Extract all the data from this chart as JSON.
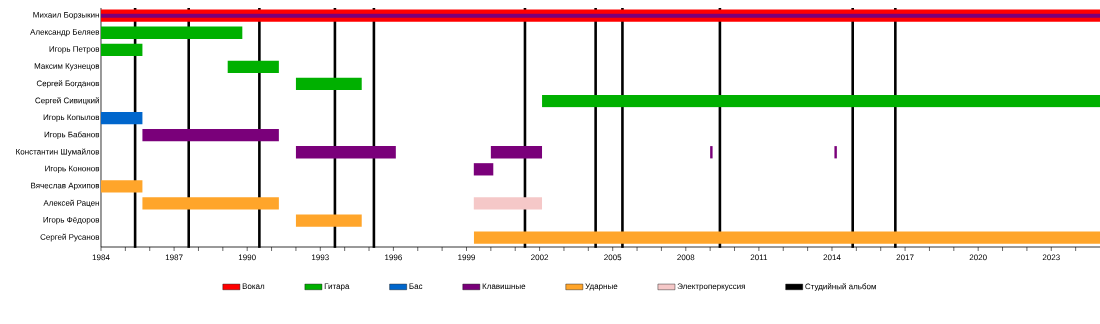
{
  "chart_data": {
    "type": "bar",
    "orientation": "horizontal",
    "categories": [
      "Михаил Борзыкин",
      "Александр Беляев",
      "Игорь Петров",
      "Максим Кузнецов",
      "Сергей Богданов",
      "Сергей Сивицкий",
      "Игорь Копылов",
      "Игорь Бабанов",
      "Константин Шумайлов",
      "Игорь Кононов",
      "Вячеслав Архипов",
      "Алексей Рацен",
      "Игорь Фёдоров",
      "Сергей Русанов"
    ],
    "series": [
      {
        "name": "Вокал",
        "color": "#ff0000",
        "base": [
          1984,
          null,
          null,
          null,
          null,
          null,
          null,
          null,
          null,
          null,
          null,
          null,
          null,
          null
        ],
        "values": [
          41,
          null,
          null,
          null,
          null,
          null,
          null,
          null,
          null,
          null,
          null,
          null,
          null,
          null
        ]
      },
      {
        "name": "Гитара",
        "color": "#00b000",
        "base": [
          null,
          1984,
          1984,
          1989.2,
          1992,
          2002.1,
          null,
          null,
          null,
          null,
          null,
          null,
          null,
          null
        ],
        "values": [
          null,
          5.8,
          1.7,
          2.1,
          2.7,
          22.9,
          null,
          null,
          null,
          null,
          null,
          null,
          null,
          null
        ]
      },
      {
        "name": "Бас",
        "color": "#0066cc",
        "base": [
          null,
          null,
          null,
          null,
          null,
          null,
          1984,
          null,
          null,
          null,
          null,
          null,
          null,
          null
        ],
        "values": [
          null,
          null,
          null,
          null,
          null,
          null,
          1.7,
          null,
          null,
          null,
          null,
          null,
          null,
          null
        ]
      },
      {
        "name": "Клавишные",
        "color": "#7a007a",
        "base": [
          1984,
          null,
          null,
          null,
          null,
          null,
          null,
          1985.7,
          1992,
          1999.3,
          null,
          null,
          null,
          null
        ],
        "values": [
          41,
          null,
          null,
          null,
          null,
          null,
          null,
          5.6,
          4.1,
          0.8,
          null,
          null,
          null,
          null
        ]
      },
      {
        "name": "Ударные",
        "color": "#ffa52a",
        "base": [
          null,
          null,
          null,
          null,
          null,
          null,
          null,
          null,
          null,
          null,
          1984,
          1985.7,
          1992,
          1999.3
        ],
        "values": [
          null,
          null,
          null,
          null,
          null,
          null,
          null,
          null,
          null,
          null,
          1.7,
          5.6,
          2.7,
          25.7
        ]
      },
      {
        "name": "Электроперкуссия",
        "color": "#f5c8c8",
        "base": [
          null,
          null,
          null,
          null,
          null,
          null,
          null,
          null,
          null,
          null,
          null,
          1999.3,
          null,
          null
        ],
        "values": [
          null,
          null,
          null,
          null,
          null,
          null,
          null,
          null,
          null,
          null,
          null,
          2.8,
          null,
          null
        ]
      },
      {
        "color": "#7a007a",
        "base": [
          null,
          null,
          null,
          null,
          null,
          null,
          null,
          null,
          2000.0,
          null,
          null,
          null,
          null,
          null
        ],
        "values": [
          null,
          null,
          null,
          null,
          null,
          null,
          null,
          null,
          2.1,
          null,
          null,
          null,
          null,
          null
        ]
      },
      {
        "color": "#7a007a",
        "base": [
          null,
          null,
          null,
          null,
          null,
          null,
          null,
          null,
          2009.0,
          null,
          null,
          null,
          null,
          null
        ],
        "values": [
          null,
          null,
          null,
          null,
          null,
          null,
          null,
          null,
          0.1,
          null,
          null,
          null,
          null,
          null
        ]
      },
      {
        "color": "#7a007a",
        "base": [
          null,
          null,
          null,
          null,
          null,
          null,
          null,
          null,
          2014.1,
          null,
          null,
          null,
          null,
          null
        ],
        "values": [
          null,
          null,
          null,
          null,
          null,
          null,
          null,
          null,
          0.1,
          null,
          null,
          null,
          null,
          null
        ]
      }
    ],
    "xlim": [
      1984,
      2025
    ],
    "xticks": [
      1984,
      {
        "value": 1985,
        "label": null
      },
      {
        "value": 1986,
        "label": null
      },
      1987,
      {
        "value": 1988,
        "label": null
      },
      {
        "value": 1989,
        "label": null
      },
      1990,
      {
        "value": 1991,
        "label": null
      },
      {
        "value": 1992,
        "label": null
      },
      1993,
      {
        "value": 1994,
        "label": null
      },
      {
        "value": 1995,
        "label": null
      },
      1996,
      {
        "value": 1997,
        "label": null
      },
      {
        "value": 1998,
        "label": null
      },
      1999,
      {
        "value": 2000,
        "label": null
      },
      {
        "value": 2001,
        "label": null
      },
      2002,
      {
        "value": 2003,
        "label": null
      },
      {
        "value": 2004,
        "label": null
      },
      2005,
      {
        "value": 2006,
        "label": null
      },
      {
        "value": 2007,
        "label": null
      },
      2008,
      {
        "value": 2009,
        "label": null
      },
      {
        "value": 2010,
        "label": null
      },
      2011,
      {
        "value": 2012,
        "label": null
      },
      {
        "value": 2013,
        "label": null
      },
      2014,
      {
        "value": 2015,
        "label": null
      },
      {
        "value": 2016,
        "label": null
      },
      2017,
      {
        "value": 2018,
        "label": null
      },
      {
        "value": 2019,
        "label": null
      },
      2020,
      {
        "value": 2021,
        "label": null
      },
      {
        "value": 2022,
        "label": null
      },
      2023,
      {
        "value": 2024,
        "label": null
      }
    ],
    "ref_lines": [
      {
        "axis": "x",
        "value": 1985.4,
        "label": "Студийный альбом",
        "color": "#000000"
      },
      {
        "axis": "x",
        "value": 1987.6,
        "color": "#000000"
      },
      {
        "axis": "x",
        "value": 1990.5,
        "color": "#000000"
      },
      {
        "axis": "x",
        "value": 1993.6,
        "color": "#000000"
      },
      {
        "axis": "x",
        "value": 1995.2,
        "color": "#000000"
      },
      {
        "axis": "x",
        "value": 2001.4,
        "color": "#000000"
      },
      {
        "axis": "x",
        "value": 2004.3,
        "color": "#000000"
      },
      {
        "axis": "x",
        "value": 2005.4,
        "color": "#000000"
      },
      {
        "axis": "x",
        "value": 2009.4,
        "color": "#000000"
      },
      {
        "axis": "x",
        "value": 2014.85,
        "color": "#000000"
      },
      {
        "axis": "x",
        "value": 2016.6,
        "color": "#000000"
      }
    ],
    "legend": "bottom",
    "grid": false
  }
}
